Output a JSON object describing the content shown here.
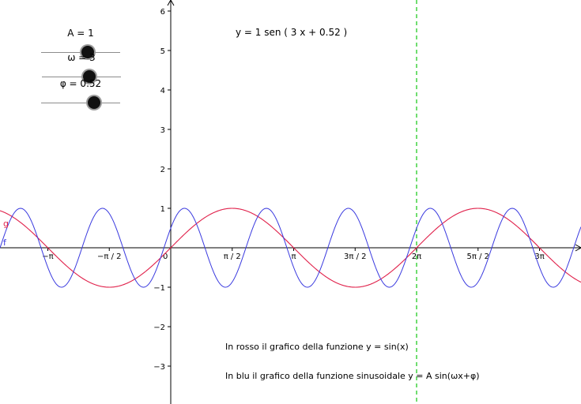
{
  "graph": {
    "x_tick_labels": [
      {
        "x": -3.14159,
        "text": "−π"
      },
      {
        "x": -1.5708,
        "text": "−π / 2"
      },
      {
        "x": 1.5708,
        "text": "π / 2"
      },
      {
        "x": 3.14159,
        "text": "π"
      },
      {
        "x": 4.71239,
        "text": "3π / 2"
      },
      {
        "x": 6.28319,
        "text": "2π"
      },
      {
        "x": 7.85398,
        "text": "5π / 2"
      },
      {
        "x": 9.42478,
        "text": "3π"
      }
    ],
    "origin_label": "0",
    "y_tick_labels": [
      "−3",
      "−2",
      "−1",
      "1",
      "2",
      "3",
      "4",
      "5",
      "6"
    ],
    "y_ticks": [
      -3,
      -2,
      -1,
      1,
      2,
      3,
      4,
      5,
      6
    ],
    "formula_text": "y = 1 sen ( 3 x + 0.52 )",
    "caption_red": "In rosso il grafico della funzione y = sin(x)",
    "caption_blue": "In blu il grafico della funzione sinusoidale y = A sin(ωx+φ)",
    "label_g": "g",
    "label_f": "f",
    "dashed_line_x": 6.28319,
    "colors": {
      "red_curve": "#e0204a",
      "blue_curve": "#3a3adf",
      "dashed_line": "#22cc22",
      "axis": "#000000"
    }
  },
  "sliders": [
    {
      "id": "A",
      "label": "A = 1",
      "value": 1,
      "min": -5,
      "max": 5
    },
    {
      "id": "omega",
      "label": "ω = 3",
      "value": 3,
      "min": -5,
      "max": 5
    },
    {
      "id": "phi",
      "label": "φ = 0.52",
      "value": 0.52,
      "min": -5,
      "max": 5
    }
  ],
  "chart_data": {
    "type": "line",
    "series": [
      {
        "name": "g",
        "function": "sin(x)",
        "color": "#e0204a"
      },
      {
        "name": "f",
        "function": "1 sin(3x + 0.52)",
        "color": "#3a3adf",
        "A": 1,
        "omega": 3,
        "phi": 0.52
      }
    ],
    "xlim": [
      -4.2,
      9.9
    ],
    "ylim": [
      -3.9,
      6.3
    ],
    "grid": false
  }
}
